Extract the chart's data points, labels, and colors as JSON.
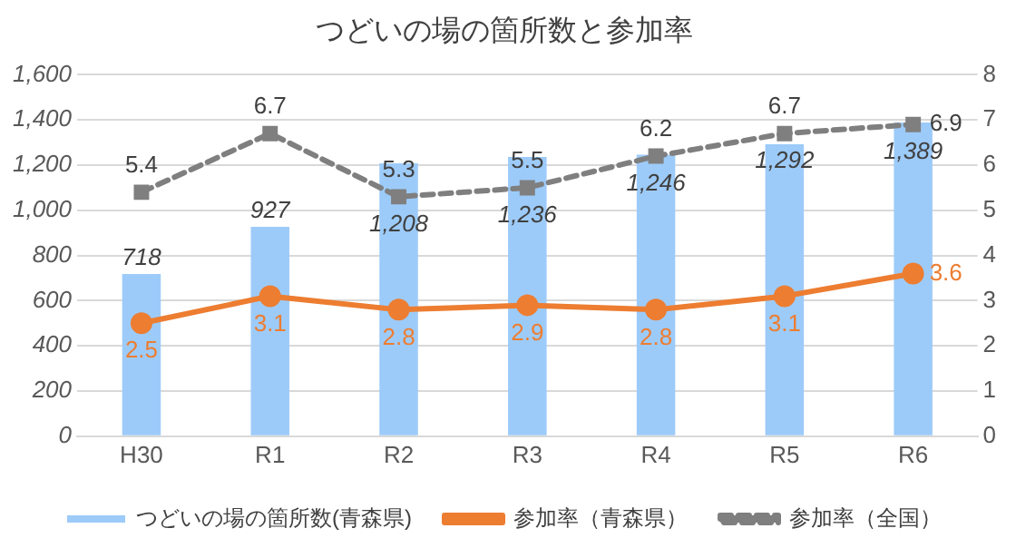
{
  "chart_data": {
    "type": "bar",
    "title": "つどいの場の箇所数と参加率",
    "categories": [
      "H30",
      "R1",
      "R2",
      "R3",
      "R4",
      "R5",
      "R6"
    ],
    "series": [
      {
        "name": "つどいの場の箇所数(青森県)",
        "color": "#9dcbf9",
        "values": [
          718,
          927,
          1208,
          1236,
          1246,
          1292,
          1389
        ],
        "value_labels": [
          "718",
          "927",
          "1,208",
          "1,236",
          "1,246",
          "1,292",
          "1,389"
        ]
      },
      {
        "name": "参加率（青森県）",
        "type": "line",
        "axis": "y2",
        "color": "#ed7d31",
        "marker": "circle",
        "line_style": "solid",
        "values": [
          2.5,
          3.1,
          2.8,
          2.9,
          2.8,
          3.1,
          3.6
        ],
        "value_labels": [
          "2.5",
          "3.1",
          "2.8",
          "2.9",
          "2.8",
          "3.1",
          "3.6"
        ]
      },
      {
        "name": "参加率（全国）",
        "type": "line",
        "axis": "y2",
        "color": "#7f7f7f",
        "marker": "square",
        "line_style": "dashed",
        "values": [
          5.4,
          6.7,
          5.3,
          5.5,
          6.2,
          6.7,
          6.9
        ],
        "value_labels": [
          "5.4",
          "6.7",
          "5.3",
          "5.5",
          "6.2",
          "6.7",
          "6.9"
        ]
      }
    ],
    "ylim": [
      0,
      1600
    ],
    "yticks": [
      0,
      {
        "value": 200,
        "label": "200"
      },
      {
        "value": 400,
        "label": "400"
      },
      {
        "value": 600,
        "label": "600"
      },
      {
        "value": 800,
        "label": "800"
      },
      {
        "value": 1000,
        "label": "1,000"
      },
      {
        "value": 1200,
        "label": "1,200"
      },
      {
        "value": 1400,
        "label": "1,400"
      },
      {
        "value": 1600,
        "label": "1,600"
      }
    ],
    "y2lim": [
      0,
      8
    ],
    "y2ticks": [
      0,
      1,
      2,
      3,
      4,
      5,
      6,
      7,
      8
    ],
    "grid": "y",
    "legend": "bottom"
  }
}
